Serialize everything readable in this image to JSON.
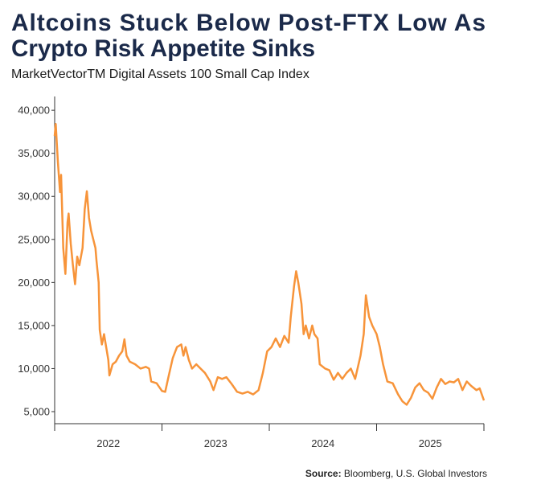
{
  "chart_data": {
    "type": "line",
    "title_lines": [
      "Altcoins Stuck Below Post-FTX Low As",
      "Crypto Risk Appetite Sinks"
    ],
    "subtitle": "MarketVectorTM Digital Assets 100 Small Cap Index",
    "source_label": "Source:",
    "source_text": "Bloomberg, U.S. Global Investors",
    "xlim": [
      2022,
      2026
    ],
    "xticks": [
      {
        "value": 2022.5,
        "label": "2022"
      },
      {
        "value": 2023.5,
        "label": "2023"
      },
      {
        "value": 2024.5,
        "label": "2024"
      },
      {
        "value": 2025.5,
        "label": "2025"
      }
    ],
    "ylim": [
      3600,
      41600
    ],
    "yticks": [
      {
        "value": 5000,
        "label": "5,000"
      },
      {
        "value": 10000,
        "label": "10,000"
      },
      {
        "value": 15000,
        "label": "15,000"
      },
      {
        "value": 20000,
        "label": "20,000"
      },
      {
        "value": 25000,
        "label": "25,000"
      },
      {
        "value": 30000,
        "label": "30,000"
      },
      {
        "value": 35000,
        "label": "35,000"
      },
      {
        "value": 40000,
        "label": "40,000"
      }
    ],
    "series": [
      {
        "color": "#f7943a",
        "x": [
          2022.0,
          2022.01,
          2022.03,
          2022.05,
          2022.06,
          2022.08,
          2022.1,
          2022.12,
          2022.13,
          2022.15,
          2022.17,
          2022.19,
          2022.21,
          2022.23,
          2022.26,
          2022.28,
          2022.3,
          2022.32,
          2022.34,
          2022.36,
          2022.38,
          2022.39,
          2022.41,
          2022.42,
          2022.44,
          2022.46,
          2022.48,
          2022.5,
          2022.51,
          2022.54,
          2022.57,
          2022.6,
          2022.63,
          2022.65,
          2022.67,
          2022.7,
          2022.75,
          2022.8,
          2022.85,
          2022.88,
          2022.9,
          2022.95,
          2023.0,
          2023.03,
          2023.06,
          2023.1,
          2023.14,
          2023.18,
          2023.2,
          2023.22,
          2023.25,
          2023.28,
          2023.32,
          2023.36,
          2023.4,
          2023.45,
          2023.48,
          2023.52,
          2023.56,
          2023.6,
          2023.65,
          2023.7,
          2023.75,
          2023.8,
          2023.85,
          2023.9,
          2023.94,
          2023.98,
          2024.02,
          2024.06,
          2024.1,
          2024.14,
          2024.18,
          2024.2,
          2024.23,
          2024.25,
          2024.27,
          2024.3,
          2024.32,
          2024.34,
          2024.37,
          2024.4,
          2024.42,
          2024.45,
          2024.47,
          2024.52,
          2024.56,
          2024.6,
          2024.64,
          2024.68,
          2024.72,
          2024.76,
          2024.8,
          2024.85,
          2024.88,
          2024.9,
          2024.93,
          2024.96,
          2025.0,
          2025.03,
          2025.06,
          2025.1,
          2025.15,
          2025.2,
          2025.24,
          2025.28,
          2025.32,
          2025.36,
          2025.4,
          2025.44,
          2025.48,
          2025.52,
          2025.56,
          2025.6,
          2025.64,
          2025.68,
          2025.72,
          2025.76,
          2025.8,
          2025.84,
          2025.88,
          2025.93,
          2025.96,
          2026.0
        ],
        "values": [
          37000,
          38400,
          34000,
          30500,
          32500,
          24000,
          21000,
          27000,
          28000,
          24500,
          22000,
          19800,
          23000,
          22000,
          24000,
          28500,
          30600,
          27500,
          26000,
          25000,
          24000,
          22500,
          20000,
          14500,
          12800,
          14000,
          12500,
          11000,
          9200,
          10500,
          10800,
          11500,
          12000,
          13400,
          11500,
          10800,
          10500,
          10000,
          10200,
          10000,
          8500,
          8300,
          7400,
          7300,
          9000,
          11200,
          12500,
          12800,
          11500,
          12500,
          11000,
          10000,
          10500,
          10000,
          9500,
          8500,
          7500,
          9000,
          8800,
          9000,
          8200,
          7300,
          7100,
          7300,
          7000,
          7500,
          9500,
          12000,
          12500,
          13500,
          12500,
          13800,
          13000,
          16000,
          19500,
          21300,
          20000,
          17500,
          14000,
          15000,
          13500,
          15000,
          14000,
          13500,
          10500,
          10000,
          9800,
          8700,
          9500,
          8800,
          9500,
          10000,
          8800,
          11500,
          14000,
          18500,
          16000,
          15000,
          14000,
          12500,
          10500,
          8500,
          8300,
          7000,
          6200,
          5800,
          6600,
          7800,
          8300,
          7500,
          7200,
          6500,
          7800,
          8800,
          8200,
          8500,
          8400,
          8800,
          7500,
          8500,
          8000,
          7500,
          7700,
          6300
        ]
      }
    ]
  }
}
